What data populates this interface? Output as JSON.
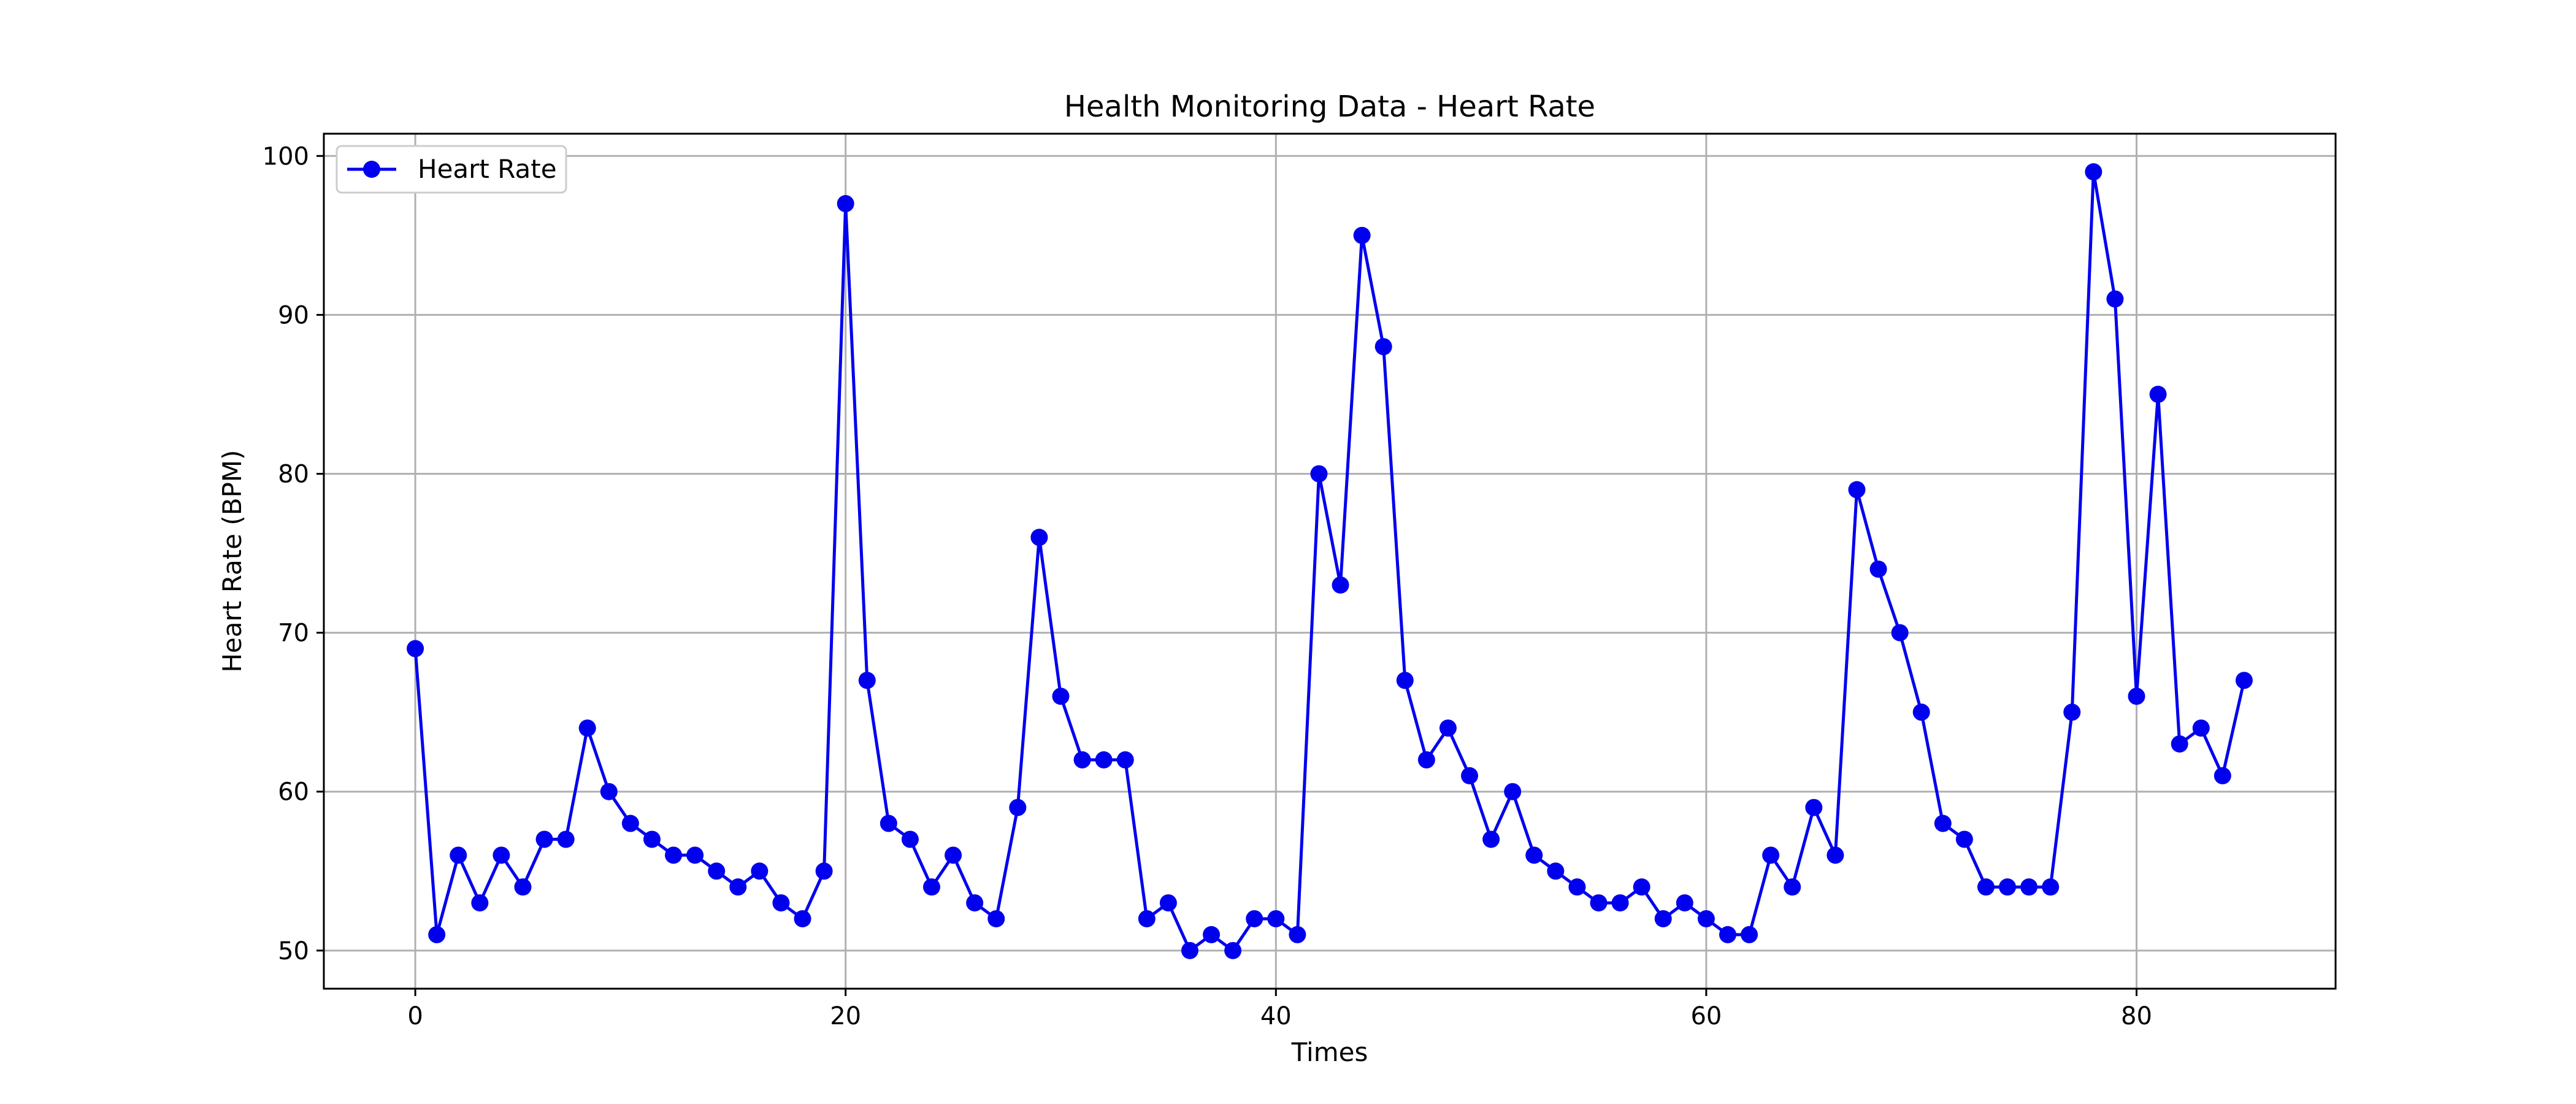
{
  "chart_data": {
    "type": "line",
    "title": "Health Monitoring Data - Heart Rate",
    "xlabel": "Times",
    "ylabel": "Heart Rate (BPM)",
    "xlim": [
      -4.25,
      89.25
    ],
    "ylim": [
      47.6,
      101.4
    ],
    "xticks": [
      0,
      20,
      40,
      60,
      80
    ],
    "yticks": [
      50,
      60,
      70,
      80,
      90,
      100
    ],
    "grid": true,
    "legend": {
      "position": "upper-left"
    },
    "colors": {
      "series": "#0000ee",
      "grid": "#b0b0b0",
      "frame": "#000000",
      "background": "#ffffff"
    },
    "series": [
      {
        "name": "Heart Rate",
        "marker": "circle",
        "x": [
          0,
          1,
          2,
          3,
          4,
          5,
          6,
          7,
          8,
          9,
          10,
          11,
          12,
          13,
          14,
          15,
          16,
          17,
          18,
          19,
          20,
          21,
          22,
          23,
          24,
          25,
          26,
          27,
          28,
          29,
          30,
          31,
          32,
          33,
          34,
          35,
          36,
          37,
          38,
          39,
          40,
          41,
          42,
          43,
          44,
          45,
          46,
          47,
          48,
          49,
          50,
          51,
          52,
          53,
          54,
          55,
          56,
          57,
          58,
          59,
          60,
          61,
          62,
          63,
          64,
          65,
          66,
          67,
          68,
          69,
          70,
          71,
          72,
          73,
          74,
          75,
          76,
          77,
          78,
          79,
          80,
          81,
          82,
          83,
          84,
          85
        ],
        "values": [
          69,
          51,
          56,
          53,
          56,
          54,
          57,
          57,
          64,
          60,
          58,
          57,
          56,
          56,
          55,
          54,
          55,
          53,
          52,
          55,
          97,
          67,
          58,
          57,
          54,
          56,
          53,
          52,
          59,
          76,
          66,
          62,
          62,
          62,
          52,
          53,
          50,
          51,
          50,
          52,
          52,
          51,
          80,
          73,
          95,
          88,
          67,
          62,
          64,
          61,
          57,
          60,
          56,
          55,
          54,
          53,
          53,
          54,
          52,
          53,
          52,
          51,
          51,
          56,
          54,
          59,
          56,
          79,
          74,
          70,
          65,
          58,
          57,
          54,
          54,
          54,
          54,
          65,
          99,
          91,
          66,
          85,
          63,
          64,
          61,
          67
        ]
      }
    ]
  }
}
